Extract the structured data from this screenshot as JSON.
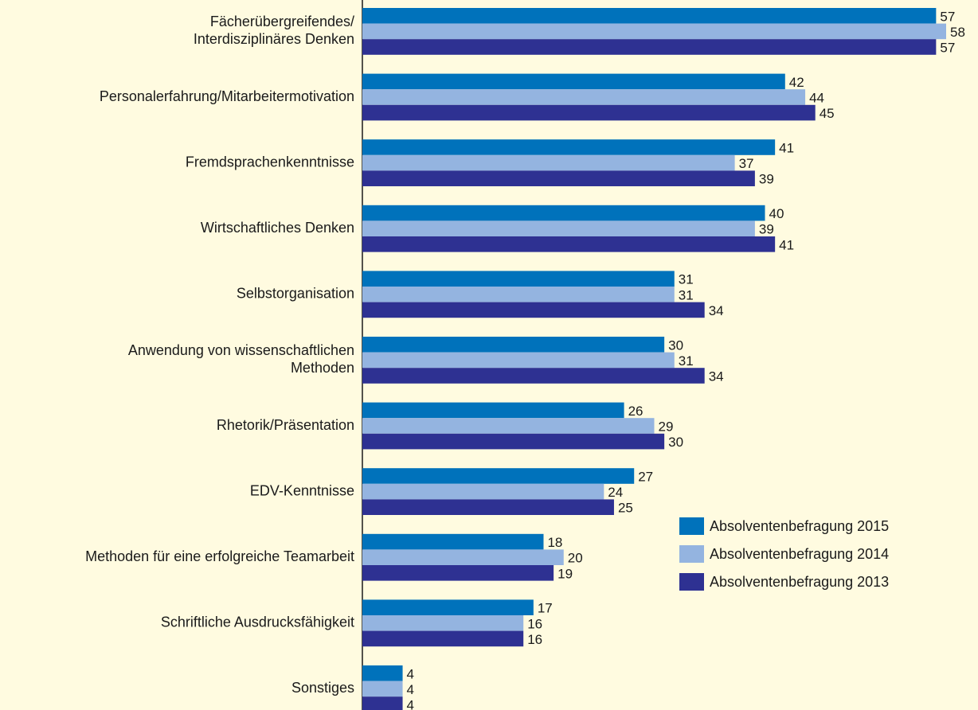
{
  "chart_data": {
    "type": "bar",
    "orientation": "horizontal",
    "categories": [
      [
        "Fächerübergreifendes/",
        "Interdisziplinäres Denken"
      ],
      [
        "Personalerfahrung/Mitarbeitermotivation"
      ],
      [
        "Fremdsprachenkenntnisse"
      ],
      [
        "Wirtschaftliches Denken"
      ],
      [
        "Selbstorganisation"
      ],
      [
        "Anwendung von wissenschaftlichen",
        "Methoden"
      ],
      [
        "Rhetorik/Präsentation"
      ],
      [
        "EDV-Kenntnisse"
      ],
      [
        "Methoden für eine erfolgreiche Teamarbeit"
      ],
      [
        "Schriftliche Ausdrucksfähigkeit"
      ],
      [
        "Sonstiges"
      ]
    ],
    "series": [
      {
        "name": "Absolventenbefragung 2015",
        "color": "#0072bb",
        "values": [
          57,
          42,
          41,
          40,
          31,
          30,
          26,
          27,
          18,
          17,
          4
        ]
      },
      {
        "name": "Absolventenbefragung 2014",
        "color": "#94b4e0",
        "values": [
          58,
          44,
          37,
          39,
          31,
          31,
          29,
          24,
          20,
          16,
          4
        ]
      },
      {
        "name": "Absolventenbefragung 2013",
        "color": "#2e3192",
        "values": [
          57,
          45,
          39,
          41,
          34,
          34,
          30,
          25,
          19,
          16,
          4
        ]
      }
    ]
  }
}
